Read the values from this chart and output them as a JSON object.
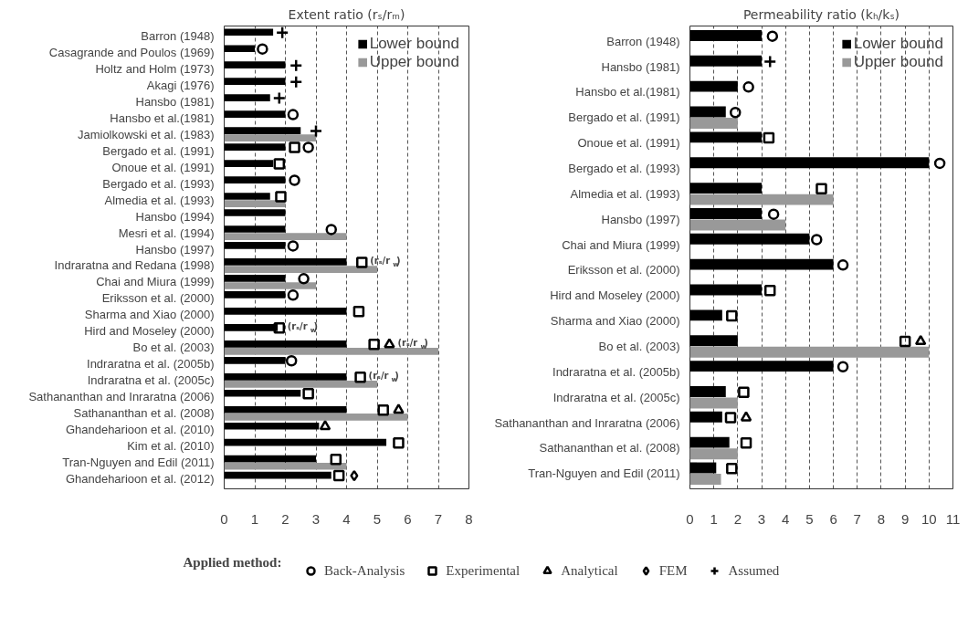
{
  "chart_data": [
    {
      "type": "bar",
      "orientation": "horizontal",
      "title": "Extent ratio (rₛ/rₘ)",
      "legend": "top right",
      "grid": "x",
      "xlim": [
        0,
        8
      ],
      "xticks": [
        0,
        1,
        2,
        3,
        4,
        5,
        6,
        7,
        8
      ],
      "categories": [
        "Barron (1948)",
        "Casagrande and Poulos (1969)",
        "Holtz and Holm (1973)",
        "Akagi (1976)",
        "Hansbo (1981)",
        "Hansbo et al.(1981)",
        "Jamiolkowski et al. (1983)",
        "Bergado et al. (1991)",
        "Onoue et al. (1991)",
        "Bergado et al. (1993)",
        "Almedia et al. (1993)",
        "Hansbo (1994)",
        "Mesri et al. (1994)",
        "Hansbo (1997)",
        "Indraratna and Redana (1998)",
        "Chai and Miura (1999)",
        "Eriksson et al. (2000)",
        "Sharma and Xiao (2000)",
        "Hird and Moseley (2000)",
        "Bo et al. (2003)",
        "Indraratna et al. (2005b)",
        "Indraratna et al. (2005c)",
        "Sathananthan and Inraratna (2006)",
        "Sathananthan et al. (2008)",
        "Ghandeharioon et al. (2010)",
        "Kim et al. (2010)",
        "Tran-Nguyen and Edil (2011)",
        "Ghandeharioon et al. (2012)"
      ],
      "annotations": [
        {
          "text": "(rₛ/r$_{w}$)",
          "x": 4.5,
          "y": "Indraratna and Redana (1998)"
        },
        {
          "text": "(rₛ/r$_{w}$)",
          "x": 1.8,
          "y": "Hird and Moseley (2000)"
        },
        {
          "text": "(rₛ/r$_{w}$)",
          "x": 5.4,
          "y": "Bo et al. (2003)"
        },
        {
          "text": "(rₛ/r$_{w}$)",
          "x": 4.45,
          "y": "Indraratna et al. (2005c)"
        }
      ],
      "series": [
        {
          "name": "Lower bound",
          "color": "#000000",
          "values": [
            1.6,
            1.0,
            2.0,
            2.0,
            1.5,
            2.0,
            2.5,
            2.0,
            1.6,
            2.0,
            1.5,
            2.0,
            2.0,
            2.0,
            4.0,
            2.0,
            2.0,
            4.0,
            1.75,
            4.0,
            2.0,
            4.0,
            2.5,
            4.0,
            3.1,
            5.3,
            3.0,
            3.5
          ]
        },
        {
          "name": "Upper bound",
          "color": "#999999",
          "values": [
            null,
            null,
            null,
            null,
            null,
            null,
            3.0,
            null,
            null,
            null,
            2.0,
            null,
            4.0,
            null,
            5.0,
            3.0,
            null,
            null,
            null,
            7.0,
            null,
            5.0,
            null,
            6.0,
            null,
            null,
            4.0,
            null
          ]
        },
        {
          "type": "scatter",
          "marker": "circle",
          "color": "#000000",
          "values": [
            null,
            1.25,
            null,
            null,
            null,
            2.25,
            null,
            2.75,
            null,
            2.3,
            null,
            null,
            3.5,
            2.25,
            null,
            2.6,
            2.25,
            null,
            null,
            null,
            2.2,
            null,
            null,
            null,
            null,
            null,
            null,
            null
          ]
        },
        {
          "type": "scatter",
          "marker": "square",
          "color": "#000000",
          "values": [
            null,
            null,
            null,
            null,
            null,
            null,
            null,
            2.3,
            1.8,
            null,
            1.85,
            null,
            null,
            null,
            4.5,
            null,
            null,
            4.4,
            1.8,
            4.9,
            null,
            4.45,
            2.75,
            5.2,
            null,
            5.7,
            3.65,
            3.75
          ]
        },
        {
          "type": "scatter",
          "marker": "triangle",
          "color": "#000000",
          "values": [
            null,
            null,
            null,
            null,
            null,
            null,
            null,
            null,
            null,
            null,
            null,
            null,
            null,
            null,
            null,
            null,
            null,
            null,
            null,
            5.4,
            null,
            null,
            null,
            5.7,
            3.3,
            null,
            null,
            null
          ]
        },
        {
          "type": "scatter",
          "marker": "diamond",
          "color": "#000000",
          "values": [
            null,
            null,
            null,
            null,
            null,
            null,
            null,
            null,
            null,
            null,
            null,
            null,
            null,
            null,
            null,
            null,
            null,
            null,
            null,
            null,
            null,
            null,
            null,
            null,
            null,
            null,
            null,
            4.25
          ]
        },
        {
          "type": "scatter",
          "marker": "cross",
          "color": "#000000",
          "values": [
            1.9,
            null,
            2.35,
            2.35,
            1.8,
            null,
            3.0,
            null,
            null,
            null,
            null,
            null,
            null,
            null,
            null,
            null,
            null,
            null,
            null,
            null,
            null,
            null,
            null,
            null,
            null,
            null,
            null,
            null
          ]
        }
      ]
    },
    {
      "type": "bar",
      "orientation": "horizontal",
      "title": "Permeability ratio (kₕ/kₛ)",
      "legend": "top right",
      "grid": "x",
      "xlim": [
        0,
        11
      ],
      "xticks": [
        0,
        1,
        2,
        3,
        4,
        5,
        6,
        7,
        8,
        9,
        10,
        11
      ],
      "categories": [
        "Barron (1948)",
        "Hansbo (1981)",
        "Hansbo et al.(1981)",
        "Bergado et al. (1991)",
        "Onoue et al. (1991)",
        "Bergado et al. (1993)",
        "Almedia et al. (1993)",
        "Hansbo (1997)",
        "Chai and Miura (1999)",
        "Eriksson et al. (2000)",
        "Hird and Moseley (2000)",
        "Sharma and Xiao (2000)",
        "Bo et al. (2003)",
        "Indraratna et al. (2005b)",
        "Indraratna et al. (2005c)",
        "Sathananthan and Inraratna (2006)",
        "Sathananthan et al. (2008)",
        "Tran-Nguyen and Edil (2011)"
      ],
      "series": [
        {
          "name": "Lower bound",
          "color": "#000000",
          "values": [
            3.0,
            3.0,
            2.0,
            1.5,
            3.0,
            10.0,
            3.0,
            3.0,
            5.0,
            6.0,
            3.0,
            1.35,
            2.0,
            6.0,
            1.5,
            1.35,
            1.65,
            1.1
          ]
        },
        {
          "name": "Upper bound",
          "color": "#999999",
          "values": [
            null,
            null,
            null,
            2.0,
            null,
            null,
            6.0,
            4.0,
            null,
            null,
            null,
            null,
            10.0,
            null,
            2.0,
            null,
            2.0,
            1.3
          ]
        },
        {
          "type": "scatter",
          "marker": "circle",
          "color": "#000000",
          "values": [
            3.45,
            null,
            2.45,
            1.9,
            null,
            10.45,
            null,
            3.5,
            5.3,
            6.4,
            null,
            null,
            null,
            6.4,
            null,
            null,
            null,
            null
          ]
        },
        {
          "type": "scatter",
          "marker": "square",
          "color": "#000000",
          "values": [
            null,
            null,
            null,
            null,
            3.3,
            null,
            5.5,
            null,
            null,
            null,
            3.35,
            1.75,
            9.0,
            null,
            2.25,
            1.7,
            2.35,
            1.75
          ]
        },
        {
          "type": "scatter",
          "marker": "triangle",
          "color": "#000000",
          "values": [
            null,
            null,
            null,
            null,
            null,
            null,
            null,
            null,
            null,
            null,
            null,
            null,
            9.65,
            null,
            null,
            2.35,
            null,
            null
          ]
        },
        {
          "type": "scatter",
          "marker": "cross",
          "color": "#000000",
          "values": [
            null,
            3.35,
            null,
            null,
            null,
            null,
            null,
            null,
            null,
            null,
            null,
            null,
            null,
            null,
            null,
            null,
            null,
            null
          ]
        }
      ]
    },
    {
      "type": "other",
      "legend": "top",
      "legend_title": "Applied method:",
      "series": [
        {
          "name": "Back-Analysis",
          "marker": "circle",
          "color": "#000000"
        },
        {
          "name": "Experimental",
          "marker": "square",
          "color": "#000000"
        },
        {
          "name": "Analytical",
          "marker": "triangle",
          "color": "#000000"
        },
        {
          "name": "FEM",
          "marker": "diamond",
          "color": "#000000"
        },
        {
          "name": "Assumed",
          "marker": "cross",
          "color": "#000000"
        }
      ]
    }
  ]
}
